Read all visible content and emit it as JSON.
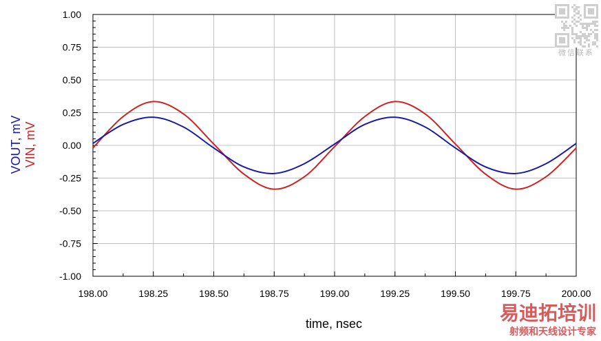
{
  "chart_data": {
    "type": "line",
    "xlabel": "time, nsec",
    "ylabels": [
      {
        "text": "VOUT, mV",
        "color": "#1a1aa6"
      },
      {
        "text": "VIN, mV",
        "color": "#cc2222"
      }
    ],
    "xlim": [
      198.0,
      200.0
    ],
    "ylim": [
      -1.0,
      1.0
    ],
    "x_ticks": [
      "198.00",
      "198.25",
      "198.50",
      "198.75",
      "199.00",
      "199.25",
      "199.50",
      "199.75",
      "200.00"
    ],
    "y_ticks": [
      "1.00",
      "0.75",
      "0.50",
      "0.25",
      "0.00",
      "-0.25",
      "-0.50",
      "-0.75",
      "-1.00"
    ],
    "x_tick_values": [
      198.0,
      198.25,
      198.5,
      198.75,
      199.0,
      199.25,
      199.5,
      199.75,
      200.0
    ],
    "y_tick_values": [
      1.0,
      0.75,
      0.5,
      0.25,
      0.0,
      -0.25,
      -0.5,
      -0.75,
      -1.0
    ],
    "grid": true,
    "series": [
      {
        "name": "VIN",
        "color": "#cc2222",
        "x": [
          198.0,
          198.125,
          198.25,
          198.375,
          198.5,
          198.625,
          198.75,
          198.875,
          199.0,
          199.125,
          199.25,
          199.375,
          199.5,
          199.625,
          199.75,
          199.875,
          200.0
        ],
        "y": [
          -0.02,
          0.22,
          0.335,
          0.24,
          0.01,
          -0.22,
          -0.335,
          -0.24,
          -0.01,
          0.22,
          0.335,
          0.24,
          0.01,
          -0.22,
          -0.335,
          -0.24,
          -0.02
        ]
      },
      {
        "name": "VOUT",
        "color": "#1a1aa6",
        "x": [
          198.0,
          198.125,
          198.25,
          198.375,
          198.5,
          198.625,
          198.75,
          198.875,
          199.0,
          199.125,
          199.25,
          199.375,
          199.5,
          199.625,
          199.75,
          199.875,
          200.0
        ],
        "y": [
          0.015,
          0.16,
          0.215,
          0.14,
          -0.02,
          -0.165,
          -0.215,
          -0.14,
          0.01,
          0.16,
          0.215,
          0.14,
          -0.02,
          -0.165,
          -0.215,
          -0.14,
          0.015
        ]
      }
    ]
  },
  "watermark": {
    "qr_caption": "微信联系",
    "brand": "易迪拓培训",
    "tagline": "射频和天线设计专家",
    "brand_color": "#d04040"
  }
}
